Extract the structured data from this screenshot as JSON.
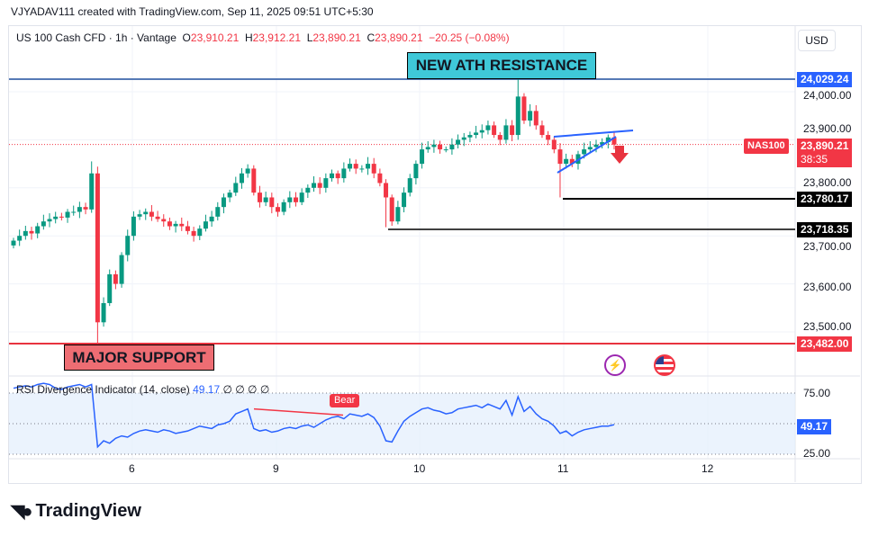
{
  "credit": "VJYADAV111 created with TradingView.com, Sep 11, 2025 09:51 UTC+5:30",
  "legend": {
    "symbol": "US 100 Cash CFD · 1h · Vantage",
    "o_label": "O",
    "o": "23,910.21",
    "h_label": "H",
    "h": "23,912.21",
    "l_label": "L",
    "l": "23,890.21",
    "c_label": "C",
    "c": "23,890.21",
    "change": "−20.25 (−0.08%)"
  },
  "currency": "USD",
  "annotations": {
    "ath": "NEW ATH RESISTANCE",
    "support": "MAJOR SUPPORT"
  },
  "price_labels": {
    "ath_line": "24,029.24",
    "last": "23,890.21",
    "countdown": "38:35",
    "symbol_tag": "NAS100",
    "level1": "23,780.17",
    "level2": "23,718.35",
    "support_line": "23,482.00"
  },
  "price_ticks": [
    "24,000.00",
    "23,900.00",
    "23,800.00",
    "23,700.00",
    "23,600.00",
    "23,500.00"
  ],
  "time_ticks": [
    "6",
    "9",
    "10",
    "11",
    "12"
  ],
  "rsi": {
    "label": "RSI Divergence Indicator (14, close)",
    "value": "49.17",
    "extras": "∅ ∅ ∅ ∅",
    "ticks": [
      "75.00",
      "25.00"
    ],
    "bear": "Bear"
  },
  "brand": "TradingView",
  "colors": {
    "up": "#089981",
    "down": "#f23645",
    "blue": "#2962ff",
    "rsi": "#2962ff"
  },
  "chart_data": {
    "type": "candlestick",
    "ylim": [
      23450,
      24060
    ],
    "closes": [
      23690,
      23700,
      23710,
      23705,
      23720,
      23730,
      23735,
      23740,
      23738,
      23750,
      23750,
      23760,
      23755,
      23830,
      23520,
      23560,
      23620,
      23600,
      23660,
      23700,
      23740,
      23745,
      23750,
      23740,
      23735,
      23730,
      23720,
      23725,
      23720,
      23710,
      23700,
      23715,
      23730,
      23740,
      23760,
      23780,
      23790,
      23810,
      23830,
      23840,
      23790,
      23770,
      23780,
      23760,
      23750,
      23770,
      23780,
      23770,
      23790,
      23800,
      23810,
      23800,
      23820,
      23830,
      23820,
      23840,
      23850,
      23840,
      23840,
      23850,
      23830,
      23810,
      23780,
      23730,
      23760,
      23790,
      23820,
      23850,
      23880,
      23885,
      23890,
      23880,
      23880,
      23890,
      23900,
      23905,
      23910,
      23915,
      23920,
      23930,
      23910,
      23900,
      23930,
      23910,
      23990,
      23940,
      23960,
      23930,
      23910,
      23900,
      23880,
      23850,
      23860,
      23850,
      23870,
      23880,
      23885,
      23890,
      23895,
      23905,
      23890
    ],
    "special_lows": {
      "14": 23470,
      "62": 23718,
      "91": 23780
    },
    "special_highs": {
      "13": 23855,
      "84": 24029
    },
    "rsi_values": [
      79,
      80,
      81,
      80,
      82,
      83,
      82,
      79,
      78,
      80,
      81,
      82,
      80,
      82,
      31,
      36,
      34,
      38,
      40,
      39,
      42,
      44,
      45,
      44,
      43,
      45,
      44,
      42,
      43,
      44,
      46,
      48,
      47,
      46,
      49,
      50,
      52,
      58,
      60,
      62,
      46,
      44,
      45,
      43,
      44,
      46,
      47,
      46,
      48,
      49,
      47,
      50,
      53,
      55,
      56,
      54,
      58,
      57,
      56,
      58,
      55,
      48,
      36,
      35,
      44,
      52,
      56,
      59,
      62,
      63,
      61,
      60,
      58,
      59,
      62,
      63,
      64,
      65,
      63,
      66,
      64,
      62,
      69,
      57,
      72,
      60,
      64,
      58,
      54,
      52,
      48,
      42,
      44,
      40,
      43,
      45,
      46,
      47,
      48,
      48,
      49.17
    ]
  }
}
